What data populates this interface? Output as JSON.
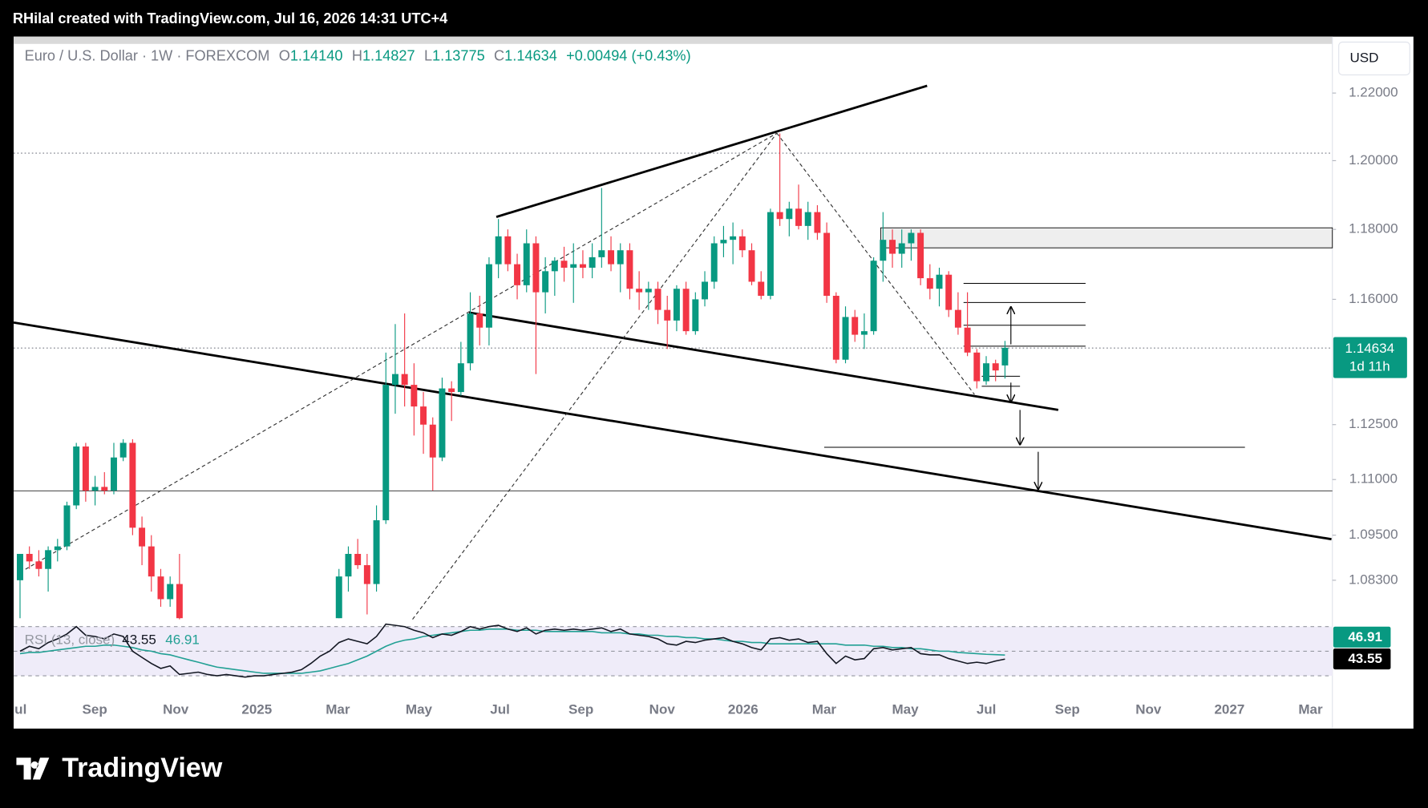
{
  "chart_data": {
    "type": "candlestick",
    "attribution": "RHilal created with TradingView.com, Jul 16, 2026 14:31 UTC+4",
    "symbol": "Euro / U.S. Dollar · 1W · FOREXCOM",
    "legend": [
      {
        "key": "O",
        "value": "1.14140"
      },
      {
        "key": "H",
        "value": "1.14827"
      },
      {
        "key": "L",
        "value": "1.13775"
      },
      {
        "key": "C",
        "value": "1.14634"
      }
    ],
    "change": "+0.00494 (+0.43%)",
    "currency": "USD",
    "last_price_label": "1.14634",
    "countdown": "1d 11h",
    "log_scale": true,
    "grid": false,
    "up_color": "#089981",
    "down_color": "#f23645",
    "ylim": [
      1.0727,
      1.2364
    ],
    "yticks": [
      {
        "value": 1.22,
        "label": "1.22000"
      },
      {
        "value": 1.2,
        "label": "1.20000"
      },
      {
        "value": 1.18,
        "label": "1.18000"
      },
      {
        "value": 1.16,
        "label": "1.16000"
      },
      {
        "value": 1.125,
        "label": "1.12500"
      },
      {
        "value": 1.11,
        "label": "1.11000"
      },
      {
        "value": 1.095,
        "label": "1.09500"
      },
      {
        "value": 1.083,
        "label": "1.08300"
      }
    ],
    "time_labels": [
      "ul",
      "Sep",
      "Nov",
      "2025",
      "Mar",
      "May",
      "Jul",
      "Sep",
      "Nov",
      "2026",
      "Mar",
      "May",
      "Jul",
      "Sep",
      "Nov",
      "2027",
      "Mar"
    ],
    "candles": [
      [
        1.083,
        1.09,
        1.073,
        1.09
      ],
      [
        1.09,
        1.092,
        1.086,
        1.088
      ],
      [
        1.088,
        1.091,
        1.084,
        1.086
      ],
      [
        1.086,
        1.092,
        1.08,
        1.091
      ],
      [
        1.091,
        1.094,
        1.088,
        1.092
      ],
      [
        1.092,
        1.104,
        1.091,
        1.103
      ],
      [
        1.103,
        1.12,
        1.102,
        1.119
      ],
      [
        1.119,
        1.12,
        1.104,
        1.107
      ],
      [
        1.107,
        1.111,
        1.103,
        1.108
      ],
      [
        1.108,
        1.112,
        1.106,
        1.107
      ],
      [
        1.107,
        1.12,
        1.106,
        1.116
      ],
      [
        1.116,
        1.121,
        1.115,
        1.12
      ],
      [
        1.12,
        1.121,
        1.095,
        1.097
      ],
      [
        1.097,
        1.1,
        1.087,
        1.092
      ],
      [
        1.092,
        1.095,
        1.08,
        1.084
      ],
      [
        1.084,
        1.086,
        1.076,
        1.078
      ],
      [
        1.078,
        1.084,
        1.076,
        1.082
      ],
      [
        1.082,
        1.09,
        1.072,
        1.073
      ],
      null,
      null,
      null,
      null,
      null,
      null,
      null,
      null,
      null,
      null,
      null,
      null,
      null,
      null,
      null,
      null,
      [
        1.073,
        1.086,
        1.073,
        1.084
      ],
      [
        1.084,
        1.092,
        1.08,
        1.09
      ],
      [
        1.09,
        1.094,
        1.086,
        1.087
      ],
      [
        1.087,
        1.09,
        1.074,
        1.082
      ],
      [
        1.082,
        1.103,
        1.08,
        1.099
      ],
      [
        1.099,
        1.145,
        1.098,
        1.136
      ],
      [
        1.136,
        1.153,
        1.128,
        1.139
      ],
      [
        1.139,
        1.156,
        1.13,
        1.136
      ],
      [
        1.136,
        1.142,
        1.122,
        1.13
      ],
      [
        1.13,
        1.134,
        1.117,
        1.125
      ],
      [
        1.125,
        1.127,
        1.107,
        1.116
      ],
      [
        1.116,
        1.138,
        1.115,
        1.135
      ],
      [
        1.135,
        1.137,
        1.126,
        1.134
      ],
      [
        1.134,
        1.148,
        1.133,
        1.142
      ],
      [
        1.142,
        1.162,
        1.14,
        1.156
      ],
      [
        1.156,
        1.161,
        1.147,
        1.152
      ],
      [
        1.152,
        1.172,
        1.147,
        1.17
      ],
      [
        1.17,
        1.183,
        1.166,
        1.178
      ],
      [
        1.178,
        1.18,
        1.168,
        1.17
      ],
      [
        1.17,
        1.173,
        1.16,
        1.164
      ],
      [
        1.164,
        1.18,
        1.162,
        1.176
      ],
      [
        1.176,
        1.178,
        1.139,
        1.162
      ],
      [
        1.162,
        1.172,
        1.156,
        1.168
      ],
      [
        1.168,
        1.172,
        1.161,
        1.171
      ],
      [
        1.171,
        1.175,
        1.165,
        1.169
      ],
      [
        1.169,
        1.176,
        1.159,
        1.17
      ],
      [
        1.17,
        1.174,
        1.166,
        1.169
      ],
      [
        1.169,
        1.176,
        1.166,
        1.172
      ],
      [
        1.172,
        1.192,
        1.169,
        1.174
      ],
      [
        1.174,
        1.178,
        1.168,
        1.17
      ],
      [
        1.17,
        1.176,
        1.162,
        1.174
      ],
      [
        1.174,
        1.176,
        1.16,
        1.163
      ],
      [
        1.163,
        1.168,
        1.157,
        1.162
      ],
      [
        1.162,
        1.165,
        1.157,
        1.163
      ],
      [
        1.163,
        1.165,
        1.153,
        1.157
      ],
      [
        1.157,
        1.161,
        1.146,
        1.154
      ],
      [
        1.154,
        1.164,
        1.151,
        1.163
      ],
      [
        1.163,
        1.165,
        1.15,
        1.151
      ],
      [
        1.151,
        1.162,
        1.15,
        1.16
      ],
      [
        1.16,
        1.168,
        1.158,
        1.165
      ],
      [
        1.165,
        1.178,
        1.163,
        1.176
      ],
      [
        1.176,
        1.181,
        1.172,
        1.177
      ],
      [
        1.177,
        1.182,
        1.17,
        1.178
      ],
      [
        1.178,
        1.18,
        1.172,
        1.174
      ],
      [
        1.174,
        1.176,
        1.164,
        1.165
      ],
      [
        1.165,
        1.168,
        1.16,
        1.161
      ],
      [
        1.161,
        1.186,
        1.16,
        1.185
      ],
      [
        1.185,
        1.208,
        1.181,
        1.183
      ],
      [
        1.183,
        1.188,
        1.178,
        1.186
      ],
      [
        1.186,
        1.193,
        1.18,
        1.181
      ],
      [
        1.181,
        1.188,
        1.177,
        1.185
      ],
      [
        1.185,
        1.187,
        1.177,
        1.179
      ],
      [
        1.179,
        1.182,
        1.159,
        1.161
      ],
      [
        1.161,
        1.162,
        1.142,
        1.143
      ],
      [
        1.143,
        1.158,
        1.142,
        1.155
      ],
      [
        1.155,
        1.157,
        1.148,
        1.15
      ],
      [
        1.15,
        1.156,
        1.146,
        1.151
      ],
      [
        1.151,
        1.172,
        1.15,
        1.171
      ],
      [
        1.171,
        1.185,
        1.165,
        1.177
      ],
      [
        1.177,
        1.18,
        1.169,
        1.173
      ],
      [
        1.173,
        1.18,
        1.169,
        1.176
      ],
      [
        1.176,
        1.18,
        1.171,
        1.179
      ],
      [
        1.179,
        1.18,
        1.164,
        1.166
      ],
      [
        1.166,
        1.17,
        1.16,
        1.163
      ],
      [
        1.163,
        1.169,
        1.158,
        1.167
      ],
      [
        1.167,
        1.168,
        1.155,
        1.157
      ],
      [
        1.157,
        1.162,
        1.15,
        1.152
      ],
      [
        1.152,
        1.162,
        1.144,
        1.145
      ],
      [
        1.145,
        1.146,
        1.135,
        1.137
      ],
      [
        1.137,
        1.144,
        1.136,
        1.142
      ],
      [
        1.142,
        1.143,
        1.137,
        1.14
      ],
      [
        1.1414,
        1.14827,
        1.13775,
        1.14634
      ]
    ],
    "rsi": {
      "label": "RSI (13, close)",
      "color": "#131722",
      "levels": [
        70,
        50,
        30
      ],
      "values": [
        50,
        54,
        52,
        57,
        60,
        64,
        70,
        63,
        62,
        60,
        64,
        62,
        50,
        45,
        40,
        36,
        38,
        31,
        32,
        33,
        31,
        30,
        31,
        30,
        29,
        30,
        30,
        31,
        32,
        33,
        35,
        40,
        46,
        50,
        57,
        60,
        58,
        56,
        62,
        72,
        71,
        70,
        67,
        65,
        61,
        64,
        63,
        66,
        70,
        68,
        70,
        71,
        68,
        66,
        69,
        64,
        67,
        68,
        67,
        68,
        67,
        68,
        69,
        66,
        68,
        64,
        63,
        62,
        60,
        56,
        55,
        58,
        57,
        59,
        60,
        61,
        58,
        56,
        53,
        51,
        60,
        61,
        59,
        60,
        57,
        58,
        48,
        40,
        46,
        43,
        44,
        52,
        53,
        51,
        52,
        53,
        48,
        47,
        47,
        44,
        42,
        40,
        41,
        40,
        42,
        43.55
      ]
    },
    "rsi_ma": {
      "color": "#22a094",
      "values": [
        48,
        49,
        49,
        50,
        51,
        52,
        53,
        54,
        54,
        55,
        55,
        54,
        53,
        51,
        50,
        48,
        47,
        45,
        43,
        41,
        39,
        37,
        36,
        35,
        34,
        33,
        32,
        32,
        32,
        32,
        32,
        33,
        34,
        36,
        38,
        40,
        43,
        46,
        50,
        54,
        57,
        59,
        60,
        62,
        63,
        64,
        65,
        66,
        67,
        67,
        68,
        68,
        68,
        67,
        67,
        67,
        66,
        66,
        66,
        66,
        66,
        66,
        65,
        65,
        65,
        64,
        64,
        63,
        63,
        62,
        62,
        61,
        61,
        60,
        60,
        59,
        58,
        58,
        57,
        57,
        56,
        56,
        56,
        56,
        56,
        56,
        56,
        56,
        55,
        55,
        55,
        54,
        54,
        53,
        53,
        52,
        52,
        51,
        50,
        50,
        49,
        48.5,
        48,
        47.5,
        47.2,
        46.91
      ]
    },
    "footer_brand": "TradingView"
  }
}
